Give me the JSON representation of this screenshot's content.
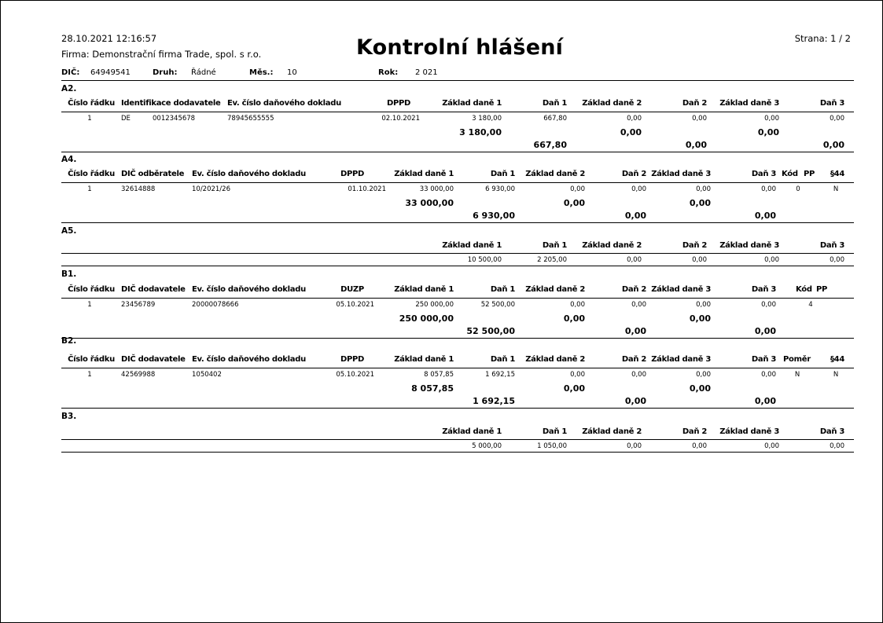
{
  "header": {
    "datetime": "28.10.2021  12:16:57",
    "company": "Firma: Demonstrační firma Trade, spol. s r.o.",
    "title": "Kontrolní hlášení",
    "page": "Strana: 1 / 2"
  },
  "info": {
    "dic_label": "DIČ:",
    "dic_value": "64949541",
    "druh_label": "Druh:",
    "druh_value": "Řádné",
    "mes_label": "Měs.:",
    "mes_value": "10",
    "rok_label": "Rok:",
    "rok_value": "2 021"
  },
  "sections": [
    {
      "label": "A2.",
      "headers": [
        "Číslo řádku",
        "Identifikace dodavatele",
        "Ev. číslo daňového dokladu",
        "DPPD",
        "Základ daně 1",
        "Daň 1",
        "Základ daně 2",
        "Daň 2",
        "Základ daně 3",
        "Daň 3"
      ],
      "row": [
        "1",
        "DE",
        "0012345678",
        "78945655555",
        "02.10.2021",
        "3 180,00",
        "667,80",
        "0,00",
        "0,00",
        "0,00",
        "0,00"
      ],
      "sum_base": [
        "3 180,00",
        "0,00",
        "0,00"
      ],
      "sum_tax": [
        "667,80",
        "0,00",
        "0,00"
      ]
    },
    {
      "label": "A4.",
      "headers": [
        "Číslo řádku",
        "DIČ odběratele",
        "Ev. číslo daňového dokladu",
        "DPPD",
        "Základ daně 1",
        "Daň 1",
        "Základ daně 2",
        "Daň 2",
        "Základ daně 3",
        "Daň 3",
        "Kód",
        "PP",
        "§44"
      ],
      "row": [
        "1",
        "32614888",
        "10/2021/26",
        "01.10.2021",
        "33 000,00",
        "6 930,00",
        "0,00",
        "0,00",
        "0,00",
        "0,00",
        "0",
        "N"
      ],
      "sum_base": [
        "33 000,00",
        "0,00",
        "0,00"
      ],
      "sum_tax": [
        "6 930,00",
        "0,00",
        "0,00"
      ]
    },
    {
      "label": "A5.",
      "headers": [
        "Základ daně 1",
        "Daň 1",
        "Základ daně 2",
        "Daň 2",
        "Základ daně 3",
        "Daň 3"
      ],
      "row": [
        "10 500,00",
        "2 205,00",
        "0,00",
        "0,00",
        "0,00",
        "0,00"
      ]
    },
    {
      "label": "B1.",
      "headers": [
        "Číslo řádku",
        "DIČ dodavatele",
        "Ev. číslo daňového dokladu",
        "DUZP",
        "Základ daně 1",
        "Daň 1",
        "Základ daně 2",
        "Daň 2",
        "Základ daně 3",
        "Daň 3",
        "Kód",
        "PP"
      ],
      "row": [
        "1",
        "23456789",
        "20000078666",
        "05.10.2021",
        "250 000,00",
        "52 500,00",
        "0,00",
        "0,00",
        "0,00",
        "0,00",
        "4"
      ],
      "sum_base": [
        "250 000,00",
        "0,00",
        "0,00"
      ],
      "sum_tax": [
        "52 500,00",
        "0,00",
        "0,00"
      ]
    },
    {
      "label": "B2.",
      "headers": [
        "Číslo řádku",
        "DIČ dodavatele",
        "Ev. číslo daňového dokladu",
        "DPPD",
        "Základ daně 1",
        "Daň 1",
        "Základ daně 2",
        "Daň 2",
        "Základ daně 3",
        "Daň 3",
        "Poměr",
        "§44"
      ],
      "row": [
        "1",
        "42569988",
        "1050402",
        "05.10.2021",
        "8 057,85",
        "1 692,15",
        "0,00",
        "0,00",
        "0,00",
        "0,00",
        "N",
        "N"
      ],
      "sum_base": [
        "8 057,85",
        "0,00",
        "0,00"
      ],
      "sum_tax": [
        "1 692,15",
        "0,00",
        "0,00"
      ]
    },
    {
      "label": "B3.",
      "headers": [
        "Základ daně 1",
        "Daň 1",
        "Základ daně 2",
        "Daň 2",
        "Základ daně 3",
        "Daň 3"
      ],
      "row": [
        "5 000,00",
        "1 050,00",
        "0,00",
        "0,00",
        "0,00",
        "0,00"
      ]
    }
  ]
}
